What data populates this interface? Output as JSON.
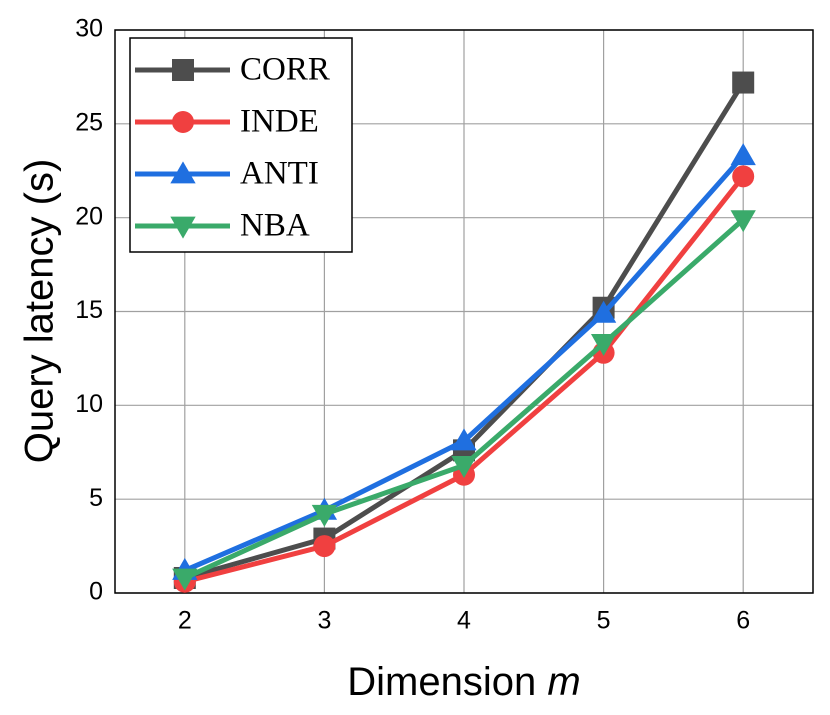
{
  "chart_data": {
    "type": "line",
    "xlabel": "Dimension",
    "xlabel_variable": "m",
    "ylabel": "Query latency (s)",
    "x": [
      2,
      3,
      4,
      5,
      6
    ],
    "series": [
      {
        "name": "CORR",
        "color": "#4d4d4d",
        "marker": "square",
        "values": [
          0.8,
          2.9,
          7.6,
          15.2,
          27.2
        ]
      },
      {
        "name": "INDE",
        "color": "#f04040",
        "marker": "circle",
        "values": [
          0.6,
          2.5,
          6.3,
          12.8,
          22.2
        ]
      },
      {
        "name": "ANTI",
        "color": "#1f6fe0",
        "marker": "triangle-up",
        "values": [
          1.2,
          4.4,
          8.1,
          14.9,
          23.3
        ]
      },
      {
        "name": "NBA",
        "color": "#3aaa6a",
        "marker": "triangle-down",
        "values": [
          0.8,
          4.2,
          6.8,
          13.3,
          19.9
        ]
      }
    ],
    "xlim": [
      1.5,
      6.5
    ],
    "xticks": [
      2,
      3,
      4,
      5,
      6
    ],
    "ylim": [
      0,
      30
    ],
    "yticks": [
      0,
      5,
      10,
      15,
      20,
      25,
      30
    ],
    "grid": true,
    "legend": "upper-left"
  }
}
